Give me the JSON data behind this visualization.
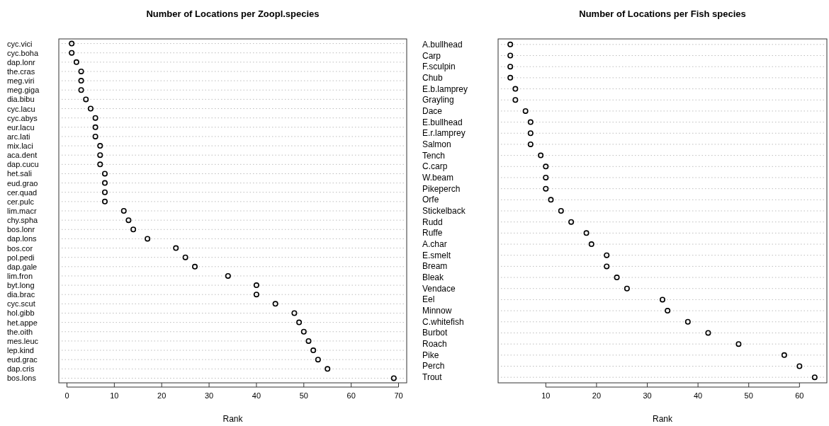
{
  "chart_data": [
    {
      "type": "scatter",
      "orientation": "horizontal",
      "title": "Number of Locations per Zoopl.species",
      "xlabel": "Rank",
      "categories": [
        "cyc.vici",
        "cyc.boha",
        "dap.lonr",
        "the.cras",
        "meg.viri",
        "meg.giga",
        "dia.bibu",
        "cyc.lacu",
        "cyc.abys",
        "eur.lacu",
        "arc.lati",
        "mix.laci",
        "aca.dent",
        "dap.cucu",
        "het.sali",
        "eud.grao",
        "cer.quad",
        "cer.pulc",
        "lim.macr",
        "chy.spha",
        "bos.lonr",
        "dap.lons",
        "bos.cor",
        "pol.pedi",
        "dap.gale",
        "lim.fron",
        "byt.long",
        "dia.brac",
        "cyc.scut",
        "hol.gibb",
        "het.appe",
        "the.oith",
        "mes.leuc",
        "lep.kind",
        "eud.grac",
        "dap.cris",
        "bos.lons"
      ],
      "series": [
        {
          "color": "#000000",
          "values": [
            1,
            1,
            2,
            3,
            3,
            3,
            4,
            5,
            6,
            6,
            6,
            7,
            7,
            7,
            8,
            8,
            8,
            8,
            12,
            13,
            14,
            17,
            23,
            25,
            27,
            34,
            40,
            40,
            44,
            48,
            49,
            50,
            51,
            52,
            53,
            55,
            69
          ]
        }
      ],
      "xlim": [
        -1.72,
        71.72
      ],
      "xticks": [
        0,
        10,
        20,
        30,
        40,
        50,
        60,
        70
      ],
      "grid": "y",
      "marker": "circle"
    },
    {
      "type": "scatter",
      "orientation": "horizontal",
      "title": "Number of Locations per Fish species",
      "xlabel": "Rank",
      "categories": [
        "A.bullhead",
        "Carp",
        "F.sculpin",
        "Chub",
        "E.b.lamprey",
        "Grayling",
        "Dace",
        "E.bullhead",
        "E.r.lamprey",
        "Salmon",
        "Tench",
        "C.carp",
        "W.beam",
        "Pikeperch",
        "Orfe",
        "Stickelback",
        "Rudd",
        "Ruffe",
        "A.char",
        "E.smelt",
        "Bream",
        "Bleak",
        "Vendace",
        "Eel",
        "Minnow",
        "C.whitefish",
        "Burbot",
        "Roach",
        "Pike",
        "Perch",
        "Trout"
      ],
      "series": [
        {
          "color": "#000000",
          "values": [
            3,
            3,
            3,
            3,
            4,
            4,
            6,
            7,
            7,
            7,
            9,
            10,
            10,
            10,
            11,
            13,
            15,
            18,
            19,
            22,
            22,
            24,
            26,
            33,
            34,
            38,
            42,
            48,
            57,
            60,
            63
          ]
        }
      ],
      "xlim": [
        0.6,
        65.4
      ],
      "xticks": [
        10,
        20,
        30,
        40,
        50,
        60
      ],
      "grid": "y",
      "marker": "circle"
    }
  ]
}
